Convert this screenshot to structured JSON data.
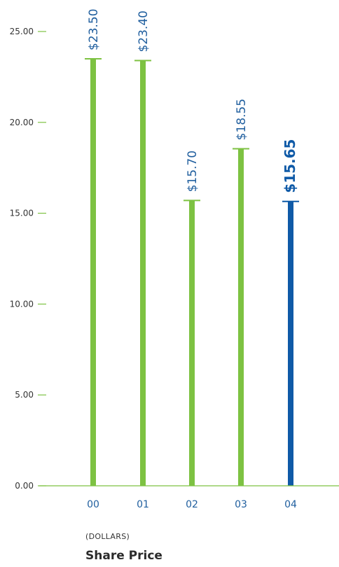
{
  "chart_data": {
    "type": "bar",
    "categories": [
      "00",
      "01",
      "02",
      "03",
      "04"
    ],
    "values": [
      23.5,
      23.4,
      15.7,
      18.55,
      15.65
    ],
    "data_labels": [
      "$23.50",
      "$23.40",
      "$15.70",
      "$18.55",
      "$15.65"
    ],
    "highlight_index": 4,
    "yticks": [
      "0.00",
      "5.00",
      "10.00",
      "15.00",
      "20.00",
      "25.00"
    ],
    "ylim": [
      0,
      25
    ],
    "title": "Share Price",
    "unit_label": "(DOLLARS)",
    "grid": false,
    "colors": {
      "bar": "#7dc242",
      "highlight": "#0f5aa7",
      "axis": "#7dc242",
      "tick_text": "#333333",
      "label": "#1f5e9e"
    }
  }
}
